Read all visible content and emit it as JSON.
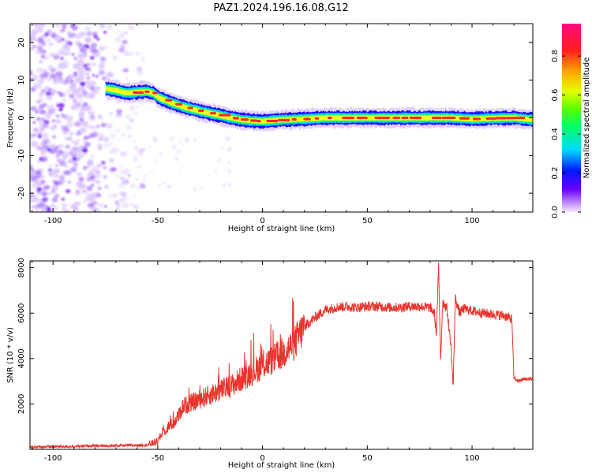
{
  "figure": {
    "title": "PAZ1.2024.196.16.08.G12"
  },
  "chart_data": [
    {
      "type": "heatmap",
      "xlabel": "Height of straight line (km)",
      "ylabel": "Frequency (Hz)",
      "xlim": [
        -111,
        129
      ],
      "ylim": [
        -25,
        25
      ],
      "xticks": [
        -100,
        -50,
        0,
        50,
        100
      ],
      "yticks": [
        -20,
        -10,
        0,
        10,
        20
      ],
      "grid": false,
      "colorbar": {
        "label": "Normalized spectral amplitude",
        "range": [
          0,
          1
        ],
        "ticks": [
          "0.0",
          "0.2",
          "0.4",
          "0.6",
          "0.8"
        ],
        "colormap": "gist_rainbow_r"
      },
      "ridge": {
        "x": [
          -75,
          -70,
          -65,
          -60,
          -55,
          -52,
          -50,
          -45,
          -40,
          -35,
          -30,
          -25,
          -20,
          -15,
          -10,
          -5,
          0,
          5,
          10,
          20,
          30,
          40,
          50,
          60,
          70,
          80,
          90,
          100,
          110,
          120,
          129
        ],
        "y": [
          7.8,
          7.3,
          6.6,
          6.8,
          7.0,
          6.5,
          5.5,
          4.3,
          3.3,
          2.5,
          1.8,
          1.2,
          0.6,
          0.0,
          -0.5,
          -0.8,
          -0.9,
          -0.7,
          -0.5,
          -0.3,
          0.0,
          0.0,
          0.0,
          0.0,
          0.0,
          0.0,
          0.0,
          -0.3,
          -0.1,
          0.0,
          -0.5
        ]
      },
      "noise_region": {
        "x": [
          -111,
          -57
        ],
        "y": [
          -25,
          25
        ]
      }
    },
    {
      "type": "line",
      "xlabel": "Height of straight line (km)",
      "ylabel": "SNR (10 * v/v)",
      "xlim": [
        -111,
        129
      ],
      "ylim": [
        0,
        8300
      ],
      "xticks": [
        -100,
        -50,
        0,
        50,
        100
      ],
      "yticks": [
        2000,
        4000,
        6000,
        8000
      ],
      "grid": false,
      "series": [
        {
          "color": "#e8352d",
          "x": [
            -111,
            -100,
            -90,
            -80,
            -70,
            -60,
            -55,
            -50,
            -48,
            -45,
            -42,
            -40,
            -38,
            -35,
            -30,
            -25,
            -20,
            -15,
            -10,
            -5,
            0,
            5,
            10,
            15,
            20,
            25,
            30,
            35,
            40,
            45,
            50,
            55,
            60,
            65,
            70,
            75,
            80,
            82,
            83,
            84,
            85,
            86,
            88,
            90,
            91,
            92,
            94,
            96,
            100,
            105,
            110,
            115,
            119,
            120,
            122,
            125,
            129
          ],
          "y": [
            100,
            120,
            130,
            150,
            160,
            180,
            200,
            350,
            700,
            1000,
            1200,
            1500,
            1900,
            2000,
            2200,
            2400,
            2600,
            2800,
            3100,
            3400,
            3700,
            3950,
            4250,
            4650,
            5400,
            5800,
            6150,
            6250,
            6300,
            6250,
            6300,
            6300,
            6250,
            6250,
            6300,
            6300,
            6250,
            6000,
            5000,
            8100,
            3900,
            6500,
            6200,
            4500,
            2700,
            6700,
            6000,
            6200,
            6100,
            6000,
            5950,
            5900,
            5750,
            3150,
            3000,
            3100,
            3100
          ]
        }
      ]
    }
  ]
}
